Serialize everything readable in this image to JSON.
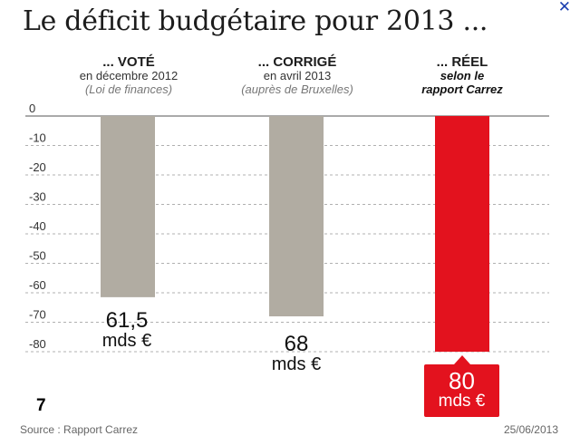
{
  "close_symbol": "✕",
  "page_number": "7",
  "footer": {
    "source": "Source : Rapport Carrez",
    "date": "25/06/2013"
  },
  "headers": [
    {
      "title": "... VOTÉ",
      "line2": "en décembre 2012",
      "line3": "(Loi de finances)"
    },
    {
      "title": "... CORRIGÉ",
      "line2": "en avril 2013",
      "line3": "(auprès de Bruxelles)"
    },
    {
      "title": "... RÉEL",
      "line2": "selon le",
      "line3": "rapport Carrez"
    }
  ],
  "value_labels": [
    {
      "num": "61,5",
      "unit": "mds €"
    },
    {
      "num": "68",
      "unit": "mds €"
    },
    {
      "num": "80",
      "unit": "mds €"
    }
  ],
  "colors": {
    "grey_bar": "#b1aca2",
    "red_bar": "#e3121e",
    "grid": "#b0b0b0",
    "axis": "#555555"
  },
  "chart_data": {
    "type": "bar",
    "title": "Le déficit budgétaire pour 2013 ...",
    "categories": [
      "... VOTÉ",
      "... CORRIGÉ",
      "... RÉEL"
    ],
    "values": [
      -61.5,
      -68,
      -80
    ],
    "value_labels": [
      "61,5 mds €",
      "68 mds €",
      "80 mds €"
    ],
    "ylim": [
      -80,
      0
    ],
    "yticks": [
      0,
      -10,
      -20,
      -30,
      -40,
      -50,
      -60,
      -70,
      -80
    ],
    "ytick_labels": [
      "0",
      "-10",
      "-20",
      "-30",
      "-40",
      "-50",
      "-60",
      "-70",
      "-80"
    ],
    "xlabel": "",
    "ylabel": "",
    "grid": true
  }
}
